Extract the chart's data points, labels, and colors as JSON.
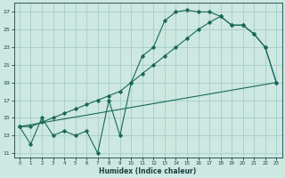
{
  "xlabel": "Humidex (Indice chaleur)",
  "bg_color": "#cce8e0",
  "grid_color": "#a8ccc8",
  "line_color": "#1a6858",
  "xlim": [
    -0.5,
    23.5
  ],
  "ylim": [
    10.5,
    28
  ],
  "yticks": [
    11,
    13,
    15,
    17,
    19,
    21,
    23,
    25,
    27
  ],
  "xticks": [
    0,
    1,
    2,
    3,
    4,
    5,
    6,
    7,
    8,
    9,
    10,
    11,
    12,
    13,
    14,
    15,
    16,
    17,
    18,
    19,
    20,
    21,
    22,
    23
  ],
  "line1_x": [
    0,
    1,
    2,
    3,
    4,
    5,
    6,
    7,
    8,
    9,
    10,
    11,
    12,
    13,
    14,
    15,
    16,
    17,
    18,
    19,
    20,
    21,
    22,
    23
  ],
  "line1_y": [
    14,
    12,
    15,
    13,
    13.5,
    13,
    13.5,
    11,
    17,
    13,
    19,
    22,
    23,
    26,
    27,
    27.2,
    27,
    27,
    26.5,
    25.5,
    25.5,
    24.5,
    23,
    19
  ],
  "line2_x": [
    0,
    1,
    2,
    3,
    4,
    5,
    6,
    7,
    8,
    9,
    10,
    11,
    12,
    13,
    14,
    15,
    16,
    17,
    18,
    19,
    20,
    21,
    22,
    23
  ],
  "line2_y": [
    14,
    14,
    14.5,
    15,
    15.5,
    16,
    16.5,
    17,
    17.5,
    18,
    19,
    20,
    21,
    22,
    23,
    24,
    25,
    25.8,
    26.5,
    25.5,
    25.5,
    24.5,
    23,
    19
  ],
  "line3_x": [
    0,
    23
  ],
  "line3_y": [
    14,
    19
  ]
}
